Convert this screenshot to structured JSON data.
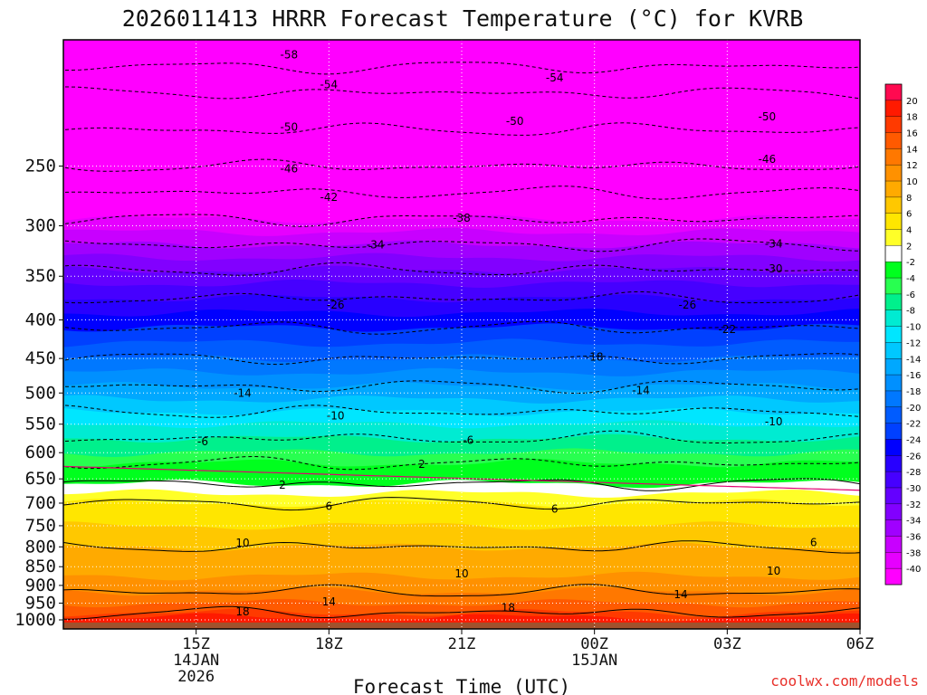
{
  "chart_data": {
    "type": "heatmap",
    "title": "2026011413 HRRR Forecast Temperature (°C) for KVRB",
    "xlabel": "Forecast Time (UTC)",
    "ylabel": "",
    "credit": "coolwx.com/models",
    "x_range_hours": [
      13.0,
      19.0
    ],
    "y_range_hpa": [
      1028,
      170
    ],
    "y_ticks": [
      250,
      300,
      350,
      400,
      450,
      500,
      550,
      600,
      650,
      700,
      750,
      800,
      850,
      900,
      950,
      1000
    ],
    "x_ticks": [
      {
        "hour": 14,
        "lines": [
          "15Z",
          "14JAN",
          "2026"
        ]
      },
      {
        "hour": 15,
        "lines": [
          "18Z"
        ]
      },
      {
        "hour": 16,
        "lines": [
          "21Z"
        ]
      },
      {
        "hour": 17,
        "lines": [
          "00Z",
          "15JAN"
        ]
      },
      {
        "hour": 18,
        "lines": [
          "03Z"
        ]
      },
      {
        "hour": 19,
        "lines": [
          "06Z"
        ]
      }
    ],
    "colorbar": {
      "ticks": [
        20,
        18,
        16,
        14,
        12,
        10,
        8,
        6,
        4,
        2,
        -2,
        -4,
        -6,
        -8,
        -10,
        -12,
        -14,
        -16,
        -18,
        -20,
        -22,
        -24,
        -26,
        -28,
        -30,
        -32,
        -34,
        -36,
        -38,
        -40
      ],
      "colors": [
        "#ff0a50",
        "#ff1a00",
        "#ff3a00",
        "#ff5a00",
        "#ff7800",
        "#ff9100",
        "#ffaa00",
        "#ffc800",
        "#ffe600",
        "#ffff28",
        "#ffffff",
        "#00ff1e",
        "#28ff50",
        "#00f08c",
        "#00ebd2",
        "#00e6ff",
        "#00c8ff",
        "#00a8ff",
        "#0090ff",
        "#0078ff",
        "#005cff",
        "#0040ff",
        "#0000ff",
        "#2800ff",
        "#4600ff",
        "#6400ff",
        "#8200ff",
        "#a000ff",
        "#c800ff",
        "#e600ff",
        "#ff00ff"
      ]
    },
    "temperature_profile_at_00Z": [
      {
        "p": 1000,
        "t": 19.5
      },
      {
        "p": 950,
        "t": 16
      },
      {
        "p": 900,
        "t": 13
      },
      {
        "p": 850,
        "t": 11
      },
      {
        "p": 800,
        "t": 10
      },
      {
        "p": 750,
        "t": 8
      },
      {
        "p": 700,
        "t": 6
      },
      {
        "p": 650,
        "t": 1
      },
      {
        "p": 600,
        "t": -4
      },
      {
        "p": 550,
        "t": -8
      },
      {
        "p": 500,
        "t": -13
      },
      {
        "p": 450,
        "t": -18
      },
      {
        "p": 400,
        "t": -23
      },
      {
        "p": 350,
        "t": -29
      },
      {
        "p": 300,
        "t": -37
      },
      {
        "p": 250,
        "t": -46
      },
      {
        "p": 200,
        "t": -54
      }
    ],
    "contour_labels": [
      {
        "text": "-58",
        "hour": 14.7,
        "p": 178
      },
      {
        "text": "-54",
        "hour": 15.0,
        "p": 195
      },
      {
        "text": "-54",
        "hour": 16.7,
        "p": 191
      },
      {
        "text": "-50",
        "hour": 14.7,
        "p": 222
      },
      {
        "text": "-50",
        "hour": 16.4,
        "p": 218
      },
      {
        "text": "-50",
        "hour": 18.3,
        "p": 215
      },
      {
        "text": "-46",
        "hour": 14.7,
        "p": 252
      },
      {
        "text": "-46",
        "hour": 18.3,
        "p": 245
      },
      {
        "text": "-42",
        "hour": 15.0,
        "p": 275
      },
      {
        "text": "-38",
        "hour": 16.0,
        "p": 293
      },
      {
        "text": "-34",
        "hour": 15.35,
        "p": 318
      },
      {
        "text": "-34",
        "hour": 18.35,
        "p": 317
      },
      {
        "text": "-30",
        "hour": 18.35,
        "p": 342
      },
      {
        "text": "-26",
        "hour": 15.05,
        "p": 382
      },
      {
        "text": "-26",
        "hour": 17.7,
        "p": 382
      },
      {
        "text": "-22",
        "hour": 18.0,
        "p": 412
      },
      {
        "text": "-18",
        "hour": 17.0,
        "p": 448
      },
      {
        "text": "-14",
        "hour": 14.35,
        "p": 500
      },
      {
        "text": "-14",
        "hour": 17.35,
        "p": 496
      },
      {
        "text": "-10",
        "hour": 15.05,
        "p": 536
      },
      {
        "text": "-10",
        "hour": 18.35,
        "p": 546
      },
      {
        "text": "-6",
        "hour": 14.05,
        "p": 580
      },
      {
        "text": "-6",
        "hour": 16.05,
        "p": 578
      },
      {
        "text": "2",
        "hour": 14.65,
        "p": 662
      },
      {
        "text": "2",
        "hour": 15.7,
        "p": 622
      },
      {
        "text": "6",
        "hour": 15.0,
        "p": 707
      },
      {
        "text": "6",
        "hour": 16.7,
        "p": 713
      },
      {
        "text": "6",
        "hour": 18.65,
        "p": 790
      },
      {
        "text": "10",
        "hour": 14.35,
        "p": 791
      },
      {
        "text": "10",
        "hour": 16.0,
        "p": 869
      },
      {
        "text": "10",
        "hour": 18.35,
        "p": 861
      },
      {
        "text": "14",
        "hour": 15.0,
        "p": 946
      },
      {
        "text": "14",
        "hour": 17.65,
        "p": 925
      },
      {
        "text": "18",
        "hour": 14.35,
        "p": 976
      },
      {
        "text": "18",
        "hour": 16.35,
        "p": 964
      }
    ]
  }
}
